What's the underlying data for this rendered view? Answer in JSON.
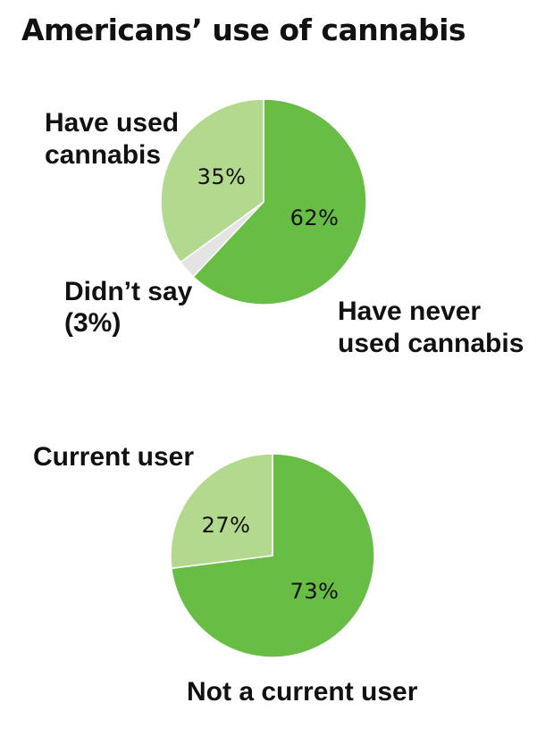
{
  "title": "Americans’ use of cannabis",
  "colors": {
    "dark_green": "#68bd45",
    "light_green": "#b3d98e",
    "gray": "#e4e4e4",
    "separator": "#ffffff"
  },
  "chart_data": [
    {
      "type": "pie",
      "slices": [
        {
          "key": "never",
          "label_lines": [
            "Have never",
            "used cannabis"
          ],
          "pct_text": "62%",
          "value": 62,
          "color": "#68bd45"
        },
        {
          "key": "didnt_say",
          "label_lines": [
            "Didn’t say",
            "(3%)"
          ],
          "pct_text": "",
          "value": 3,
          "color": "#e4e4e4"
        },
        {
          "key": "used",
          "label_lines": [
            "Have used",
            "cannabis"
          ],
          "pct_text": "35%",
          "value": 35,
          "color": "#b3d98e"
        }
      ]
    },
    {
      "type": "pie",
      "slices": [
        {
          "key": "not_current",
          "label_lines": [
            "Not a current user"
          ],
          "pct_text": "73%",
          "value": 73,
          "color": "#68bd45"
        },
        {
          "key": "current",
          "label_lines": [
            "Current user"
          ],
          "pct_text": "27%",
          "value": 27,
          "color": "#b3d98e"
        }
      ]
    }
  ]
}
